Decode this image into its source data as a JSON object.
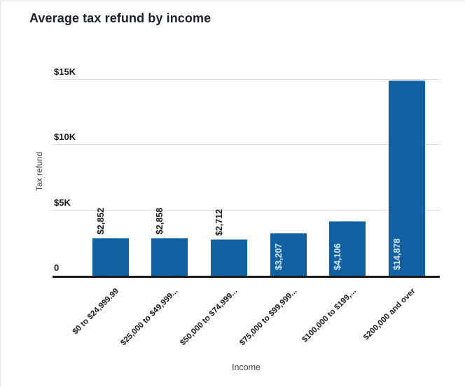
{
  "chart_data": {
    "type": "bar",
    "title": "Average tax refund by income",
    "xlabel": "Income",
    "ylabel": "Tax refund",
    "categories": [
      "$0 to $24,999.99",
      "$25,000 to $49,999...",
      "$50,000 to $74,999...",
      "$75,000 to $99,999...",
      "$100,000 to $199,...",
      "$200,000 and over"
    ],
    "values": [
      2852,
      2858,
      2712,
      3207,
      4106,
      14878
    ],
    "value_labels": [
      "$2,852",
      "$2,858",
      "$2,712",
      "$3,207",
      "$4,106",
      "$14,878"
    ],
    "value_label_position": [
      "outside",
      "outside",
      "outside",
      "inside",
      "inside",
      "inside"
    ],
    "y_ticks": [
      "$15K",
      "$10K",
      "$5K",
      "0"
    ],
    "y_tick_values": [
      15000,
      10000,
      5000,
      0
    ],
    "ylim": [
      0,
      15000
    ],
    "grid": true,
    "legend": "none",
    "colors": {
      "bar": "#1160a2",
      "inside_label": "#d6e6f4",
      "outside_label": "#1a1a1a",
      "gridline": "#dcdcdc",
      "axis_line": "#1a1a1a",
      "title": "#1c2127",
      "axis_title": "#3e454c",
      "tick_label": "#1a1a1a"
    }
  }
}
